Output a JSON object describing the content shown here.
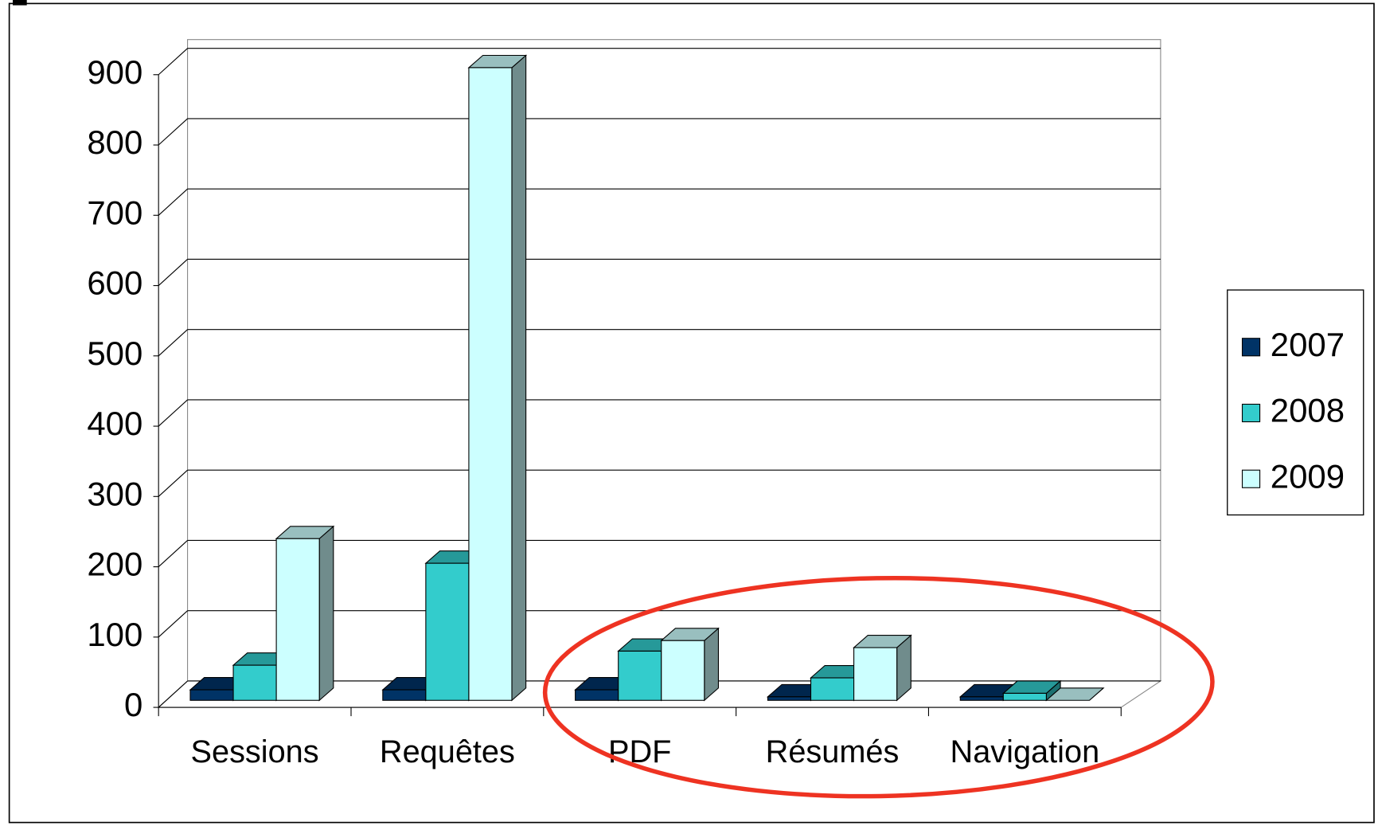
{
  "chart_data": {
    "type": "bar3d",
    "categories": [
      "Sessions",
      "Requêtes",
      "PDF",
      "Résumés",
      "Navigation"
    ],
    "series": [
      {
        "name": "2007",
        "color": "#003366",
        "values": [
          15,
          15,
          15,
          5,
          5
        ]
      },
      {
        "name": "2008",
        "color": "#33cccc",
        "values": [
          50,
          195,
          70,
          32,
          10
        ]
      },
      {
        "name": "2009",
        "color": "#ccffff",
        "values": [
          230,
          900,
          85,
          75,
          0
        ]
      }
    ],
    "ylim": [
      0,
      900
    ],
    "yticks": [
      0,
      100,
      200,
      300,
      400,
      500,
      600,
      700,
      800,
      900
    ],
    "grid": true,
    "legend": "right"
  }
}
